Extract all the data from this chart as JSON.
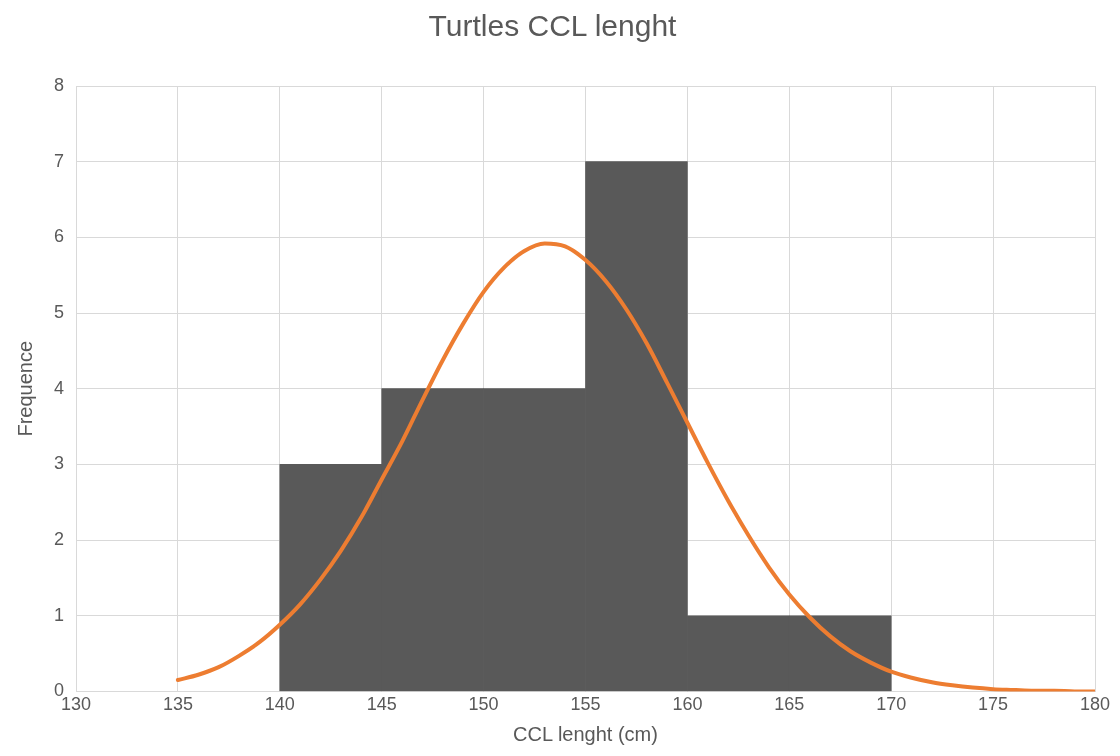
{
  "chart_data": {
    "type": "histogram",
    "title": "Turtles CCL lenght",
    "xlabel": "CCL lenght (cm)",
    "ylabel": "Frequence",
    "bins": [
      140,
      145,
      150,
      155,
      160,
      165,
      170
    ],
    "values": [
      3,
      4,
      4,
      7,
      1,
      1
    ],
    "color": "#595959",
    "series": [
      {
        "type": "line",
        "color": "#ed7d31",
        "x": [
          135,
          136,
          137,
          138,
          139,
          140,
          141,
          142,
          143,
          144,
          145,
          146,
          147,
          148,
          149,
          150,
          151,
          152,
          153,
          154,
          155,
          156,
          157,
          158,
          159,
          160,
          161,
          162,
          163,
          164,
          165,
          166,
          167,
          168,
          169,
          170,
          171,
          172,
          173,
          174,
          175,
          176,
          177,
          178,
          179,
          180
        ],
        "values": [
          0.15,
          0.22,
          0.32,
          0.47,
          0.65,
          0.88,
          1.15,
          1.48,
          1.86,
          2.3,
          2.8,
          3.3,
          3.85,
          4.38,
          4.86,
          5.28,
          5.6,
          5.82,
          5.92,
          5.88,
          5.7,
          5.42,
          5.05,
          4.6,
          4.08,
          3.55,
          3.02,
          2.52,
          2.06,
          1.64,
          1.28,
          0.98,
          0.73,
          0.53,
          0.38,
          0.26,
          0.18,
          0.12,
          0.08,
          0.05,
          0.03,
          0.02,
          0.01,
          0.01,
          0,
          0
        ]
      }
    ],
    "xlim": [
      130,
      180
    ],
    "xticks": [
      130,
      135,
      140,
      145,
      150,
      155,
      160,
      165,
      170,
      175,
      180
    ],
    "ylim": [
      0,
      8
    ],
    "yticks": [
      0,
      1,
      2,
      3,
      4,
      5,
      6,
      7,
      8
    ],
    "grid": true,
    "marker": "none",
    "legend": false
  }
}
